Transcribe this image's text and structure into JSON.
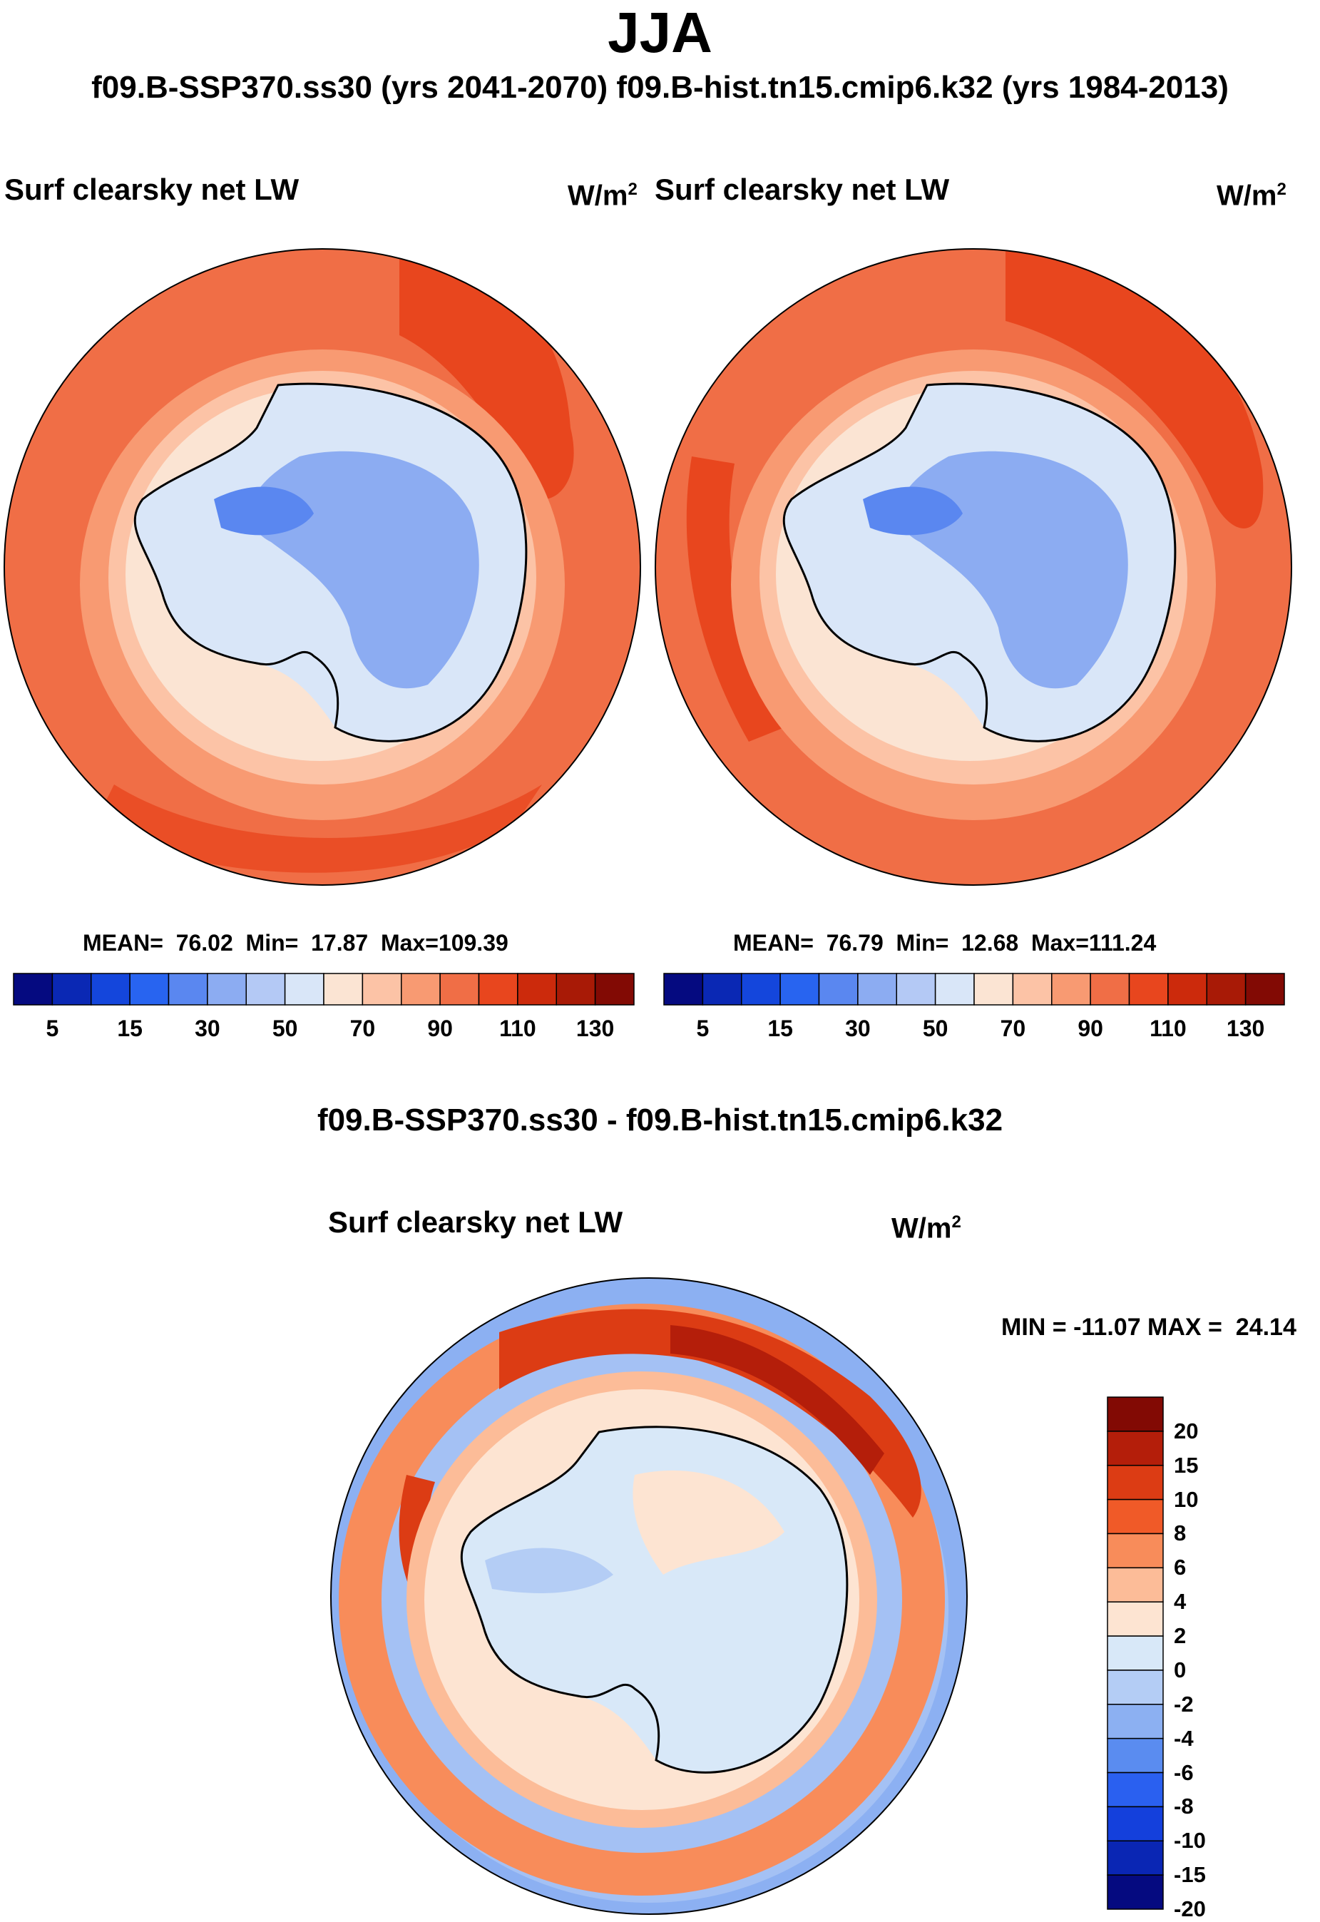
{
  "season": "JJA",
  "subtitle": "f09.B-SSP370.ss30 (yrs 2041-2070)  f09.B-hist.tn15.cmip6.k32 (yrs 1984-2013)",
  "panels": [
    {
      "title": "Surf clearsky net LW",
      "units_base": "W/m",
      "units_exp": "2",
      "stats": {
        "mean_label": "MEAN=",
        "mean": "76.02",
        "min_label": "Min=",
        "min": "17.87",
        "max_label": "Max=",
        "max": "109.39"
      }
    },
    {
      "title": "Surf clearsky net LW",
      "units_base": "W/m",
      "units_exp": "2",
      "stats": {
        "mean_label": "MEAN=",
        "mean": "76.79",
        "min_label": "Min=",
        "min": "12.68",
        "max_label": "Max=",
        "max": "111.24"
      }
    }
  ],
  "abs_colorbar": {
    "colors": [
      "#050a80",
      "#0a28b4",
      "#1446dc",
      "#2864f0",
      "#5a87f0",
      "#8cacf2",
      "#b4c9f5",
      "#d9e6f8",
      "#fbe4d3",
      "#fcc3a6",
      "#f89a72",
      "#f06e46",
      "#e8461e",
      "#cc2a0c",
      "#a81a06",
      "#820a04"
    ],
    "labels": [
      "5",
      "15",
      "30",
      "50",
      "70",
      "90",
      "110",
      "130"
    ]
  },
  "diff": {
    "title": "f09.B-SSP370.ss30 - f09.B-hist.tn15.cmip6.k32",
    "panel_title": "Surf clearsky net LW",
    "units_base": "W/m",
    "units_exp": "2",
    "minmax": "MIN = -11.07 MAX =  24.14",
    "colors": [
      "#820a04",
      "#b41e0a",
      "#dc3c14",
      "#f05a28",
      "#f88c5a",
      "#fcbc98",
      "#fde4d2",
      "#d8e8f8",
      "#b4cdf5",
      "#8cb0f2",
      "#5a8cf0",
      "#2a60f0",
      "#1440dc",
      "#0a26b4",
      "#050a80"
    ],
    "labels": [
      "20",
      "15",
      "10",
      "8",
      "6",
      "4",
      "2",
      "0",
      "-2",
      "-4",
      "-6",
      "-8",
      "-10",
      "-15",
      "-20"
    ]
  },
  "icons": [
    "antarctica-polar-map"
  ]
}
